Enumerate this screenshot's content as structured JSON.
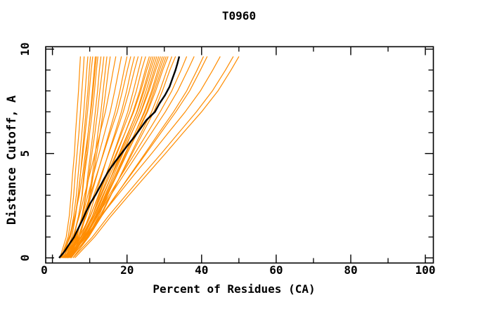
{
  "title": "T0960",
  "x_axis": {
    "label": "Percent of Residues (CA)",
    "major_tick_values": [
      0,
      20,
      40,
      60,
      80,
      100
    ],
    "major_tick_labels": [
      "0",
      "20",
      "40",
      "60",
      "80",
      "100"
    ],
    "minor_tick_values": [
      10,
      30,
      50,
      70,
      90
    ]
  },
  "y_axis": {
    "label": "Distance Cutoff, A",
    "major_tick_values": [
      0,
      5,
      10
    ],
    "major_tick_labels": [
      "0",
      "5",
      "10"
    ],
    "minor_tick_values": [
      1,
      2,
      3,
      4,
      6,
      7,
      8,
      9
    ]
  },
  "colors": {
    "model_curve": "#ff8c00",
    "reference_curve": "#000000",
    "frame": "#000000",
    "background": "#ffffff"
  },
  "chart_data": {
    "type": "line",
    "title": "T0960",
    "xlabel": "Percent of Residues (CA)",
    "ylabel": "Distance Cutoff, A",
    "xlim": [
      -2,
      102
    ],
    "ylim": [
      -0.25,
      10.1
    ],
    "grid": false,
    "legend": "none",
    "y_knots": [
      0,
      1,
      2,
      3,
      4,
      5,
      6,
      7,
      8,
      9,
      9.65
    ],
    "curves": [
      {
        "x": [
          2.0,
          3.7,
          4.5,
          5.0,
          5.4,
          5.9,
          6.2,
          6.6,
          7.0,
          7.3,
          7.5
        ]
      },
      {
        "x": [
          2.3,
          4.2,
          5.1,
          5.7,
          6.1,
          6.6,
          7.1,
          7.5,
          7.9,
          8.3,
          8.5
        ]
      },
      {
        "x": [
          2.6,
          4.7,
          5.7,
          6.4,
          6.9,
          7.4,
          7.9,
          8.4,
          8.8,
          9.2,
          9.5
        ]
      },
      {
        "x": [
          3.0,
          5.2,
          6.2,
          7.0,
          7.5,
          8.0,
          8.5,
          9.0,
          9.5,
          9.9,
          10.2
        ]
      },
      {
        "x": [
          2.2,
          4.8,
          6.1,
          6.9,
          7.5,
          8.2,
          8.8,
          9.4,
          9.9,
          10.4,
          10.8
        ]
      },
      {
        "x": [
          3.4,
          5.8,
          7.0,
          7.9,
          8.4,
          9.1,
          9.6,
          10.2,
          10.7,
          11.2,
          11.5
        ]
      },
      {
        "x": [
          2.8,
          5.6,
          7.0,
          8.0,
          8.6,
          9.4,
          10.0,
          10.7,
          11.3,
          11.8,
          12.2
        ]
      },
      {
        "x": [
          3.8,
          6.6,
          7.9,
          8.9,
          9.5,
          10.2,
          10.9,
          11.5,
          12.1,
          12.6,
          13.0
        ]
      },
      {
        "x": [
          3.2,
          6.4,
          8.0,
          9.0,
          9.8,
          10.6,
          11.4,
          12.1,
          12.7,
          13.4,
          13.8
        ]
      },
      {
        "x": [
          4.2,
          7.3,
          8.9,
          9.9,
          10.7,
          11.5,
          12.2,
          13.0,
          13.6,
          14.2,
          14.6
        ]
      },
      {
        "x": [
          2.5,
          4.5,
          6.0,
          7.2,
          8.1,
          8.8,
          9.6,
          10.3,
          10.9,
          11.4,
          11.8
        ]
      },
      {
        "x": [
          3.6,
          7.2,
          9.0,
          10.1,
          11.0,
          11.9,
          12.8,
          13.6,
          14.3,
          15.0,
          15.5
        ]
      },
      {
        "x": [
          3.0,
          5.5,
          7.2,
          8.6,
          10.0,
          11.4,
          12.8,
          14.2,
          15.3,
          16.3,
          17.0
        ]
      },
      {
        "x": [
          3.5,
          6.2,
          8.0,
          9.5,
          11.0,
          12.5,
          14.0,
          15.5,
          16.7,
          17.8,
          18.5
        ]
      },
      {
        "x": [
          4.0,
          6.9,
          8.8,
          10.4,
          12.0,
          13.6,
          15.2,
          16.8,
          18.1,
          19.2,
          20.0
        ]
      },
      {
        "x": [
          2.8,
          6.1,
          8.3,
          10.1,
          11.9,
          13.7,
          15.5,
          17.4,
          18.8,
          20.1,
          21.0
        ]
      },
      {
        "x": [
          4.5,
          7.7,
          9.8,
          11.5,
          13.3,
          15.0,
          16.8,
          18.5,
          19.9,
          21.1,
          22.0
        ]
      },
      {
        "x": [
          3.2,
          6.8,
          9.1,
          11.1,
          13.1,
          15.1,
          17.1,
          19.0,
          20.6,
          22.0,
          23.0
        ]
      },
      {
        "x": [
          5.0,
          8.4,
          10.7,
          12.6,
          14.5,
          16.4,
          18.3,
          20.2,
          21.7,
          23.1,
          24.0
        ]
      },
      {
        "x": [
          3.8,
          7.6,
          10.2,
          12.3,
          14.4,
          16.5,
          18.6,
          20.8,
          22.5,
          23.9,
          25.0
        ]
      },
      {
        "x": [
          4.2,
          8.1,
          10.7,
          12.9,
          15.1,
          17.3,
          19.5,
          21.6,
          23.4,
          24.9,
          26.0
        ]
      },
      {
        "x": [
          3.0,
          7.2,
          10.1,
          12.4,
          14.7,
          17.1,
          19.5,
          21.8,
          23.7,
          25.3,
          26.5
        ]
      },
      {
        "x": [
          4.8,
          8.8,
          11.5,
          13.7,
          16.0,
          18.1,
          20.4,
          22.6,
          24.3,
          25.9,
          27.0
        ]
      },
      {
        "x": [
          3.5,
          7.8,
          10.7,
          13.1,
          15.5,
          17.9,
          20.3,
          22.7,
          24.6,
          26.3,
          27.5
        ]
      },
      {
        "x": [
          4.0,
          8.3,
          11.2,
          13.6,
          16.0,
          18.4,
          20.8,
          23.2,
          25.1,
          26.8,
          28.0
        ]
      },
      {
        "x": [
          4.5,
          8.8,
          11.7,
          14.1,
          16.5,
          18.9,
          21.3,
          23.7,
          25.6,
          27.3,
          28.5
        ]
      },
      {
        "x": [
          3.2,
          7.8,
          11.0,
          13.5,
          16.1,
          18.7,
          21.3,
          23.8,
          25.9,
          27.7,
          29.0
        ]
      },
      {
        "x": [
          5.0,
          9.4,
          12.4,
          14.8,
          17.2,
          19.7,
          22.2,
          24.6,
          26.6,
          28.3,
          29.5
        ]
      },
      {
        "x": [
          3.8,
          8.5,
          11.7,
          14.3,
          16.9,
          19.5,
          22.2,
          24.8,
          26.9,
          28.7,
          30.0
        ]
      },
      {
        "x": [
          4.2,
          8.9,
          12.1,
          14.7,
          17.4,
          20.0,
          22.6,
          25.3,
          27.3,
          29.2,
          30.5
        ]
      },
      {
        "x": [
          3.5,
          8.5,
          11.8,
          14.5,
          17.3,
          20.0,
          22.8,
          25.5,
          27.7,
          29.6,
          31.0
        ]
      },
      {
        "x": [
          4.8,
          9.7,
          13.0,
          15.7,
          18.4,
          21.1,
          23.8,
          26.6,
          28.8,
          30.7,
          32.0
        ]
      },
      {
        "x": [
          4.0,
          9.2,
          12.7,
          15.6,
          18.5,
          21.4,
          24.3,
          27.2,
          29.5,
          31.5,
          33.0
        ]
      },
      {
        "x": [
          5.0,
          8.7,
          11.8,
          15.2,
          18.6,
          22.1,
          25.5,
          28.9,
          32.0,
          34.5,
          36.0
        ]
      },
      {
        "x": [
          4.5,
          8.5,
          11.9,
          15.6,
          19.2,
          22.9,
          26.6,
          30.3,
          33.6,
          36.3,
          38.0
        ]
      },
      {
        "x": [
          5.5,
          9.7,
          13.2,
          17.1,
          20.9,
          24.8,
          28.6,
          32.5,
          36.0,
          38.8,
          40.5
        ]
      },
      {
        "x": [
          5.0,
          9.4,
          13.0,
          17.0,
          21.1,
          25.1,
          29.1,
          33.1,
          36.8,
          39.7,
          41.5
        ]
      },
      {
        "x": [
          4.0,
          8.9,
          13.0,
          17.5,
          22.0,
          26.6,
          31.1,
          35.6,
          39.7,
          43.0,
          45.0
        ]
      },
      {
        "x": [
          5.5,
          10.7,
          15.0,
          19.7,
          24.4,
          29.2,
          33.9,
          38.6,
          42.9,
          46.4,
          48.5
        ]
      },
      {
        "x": [
          6.0,
          11.3,
          15.7,
          20.5,
          25.4,
          30.3,
          35.1,
          40.0,
          44.4,
          47.9,
          50.0
        ]
      }
    ],
    "black_curve": {
      "y": [
        0,
        0.3,
        0.6,
        1,
        1.4,
        1.8,
        2.2,
        2.6,
        3,
        3.4,
        3.8,
        4.2,
        4.6,
        5,
        5.4,
        5.8,
        6.2,
        6.6,
        7,
        7.4,
        7.8,
        8.2,
        8.6,
        9,
        9.3,
        9.65
      ],
      "x": [
        1.8,
        3.2,
        4.3,
        5.8,
        6.9,
        8.0,
        9.0,
        10.1,
        11.5,
        12.7,
        13.9,
        15.2,
        16.8,
        18.5,
        20.2,
        22.0,
        23.6,
        25.2,
        27.5,
        28.7,
        30.2,
        31.4,
        32.2,
        33.0,
        33.5,
        34.0
      ]
    }
  }
}
